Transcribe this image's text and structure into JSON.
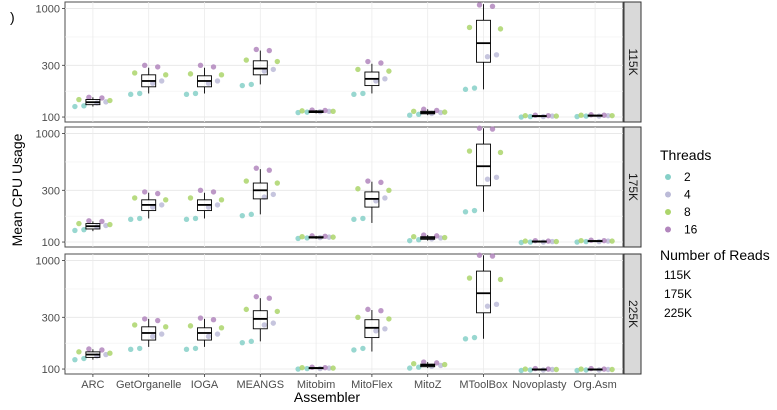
{
  "corner_mark": ")",
  "chart_data": {
    "type": "box-with-jitter",
    "xlabel": "Assembler",
    "ylabel": "Mean CPU Usage",
    "y_scale": "log10",
    "ylim": [
      90,
      1150
    ],
    "y_ticks": [
      100,
      300,
      1000
    ],
    "y_tick_labels": [
      "100",
      "300",
      "1000"
    ],
    "grid": true,
    "legend_position": "right",
    "categories": [
      "ARC",
      "GetOrganelle",
      "IOGA",
      "MEANGS",
      "Mitobim",
      "MitoFlex",
      "MitoZ",
      "MToolBox",
      "Novoplasty",
      "Org.Asm"
    ],
    "facets": [
      "115K",
      "175K",
      "225K"
    ],
    "threads_legend": {
      "title": "Threads",
      "items": [
        {
          "label": "2",
          "color": "#86d0c8"
        },
        {
          "label": "4",
          "color": "#bcbbd8"
        },
        {
          "label": "8",
          "color": "#acd56b"
        },
        {
          "label": "16",
          "color": "#b286bd"
        }
      ]
    },
    "reads_legend": {
      "title": "Number of Reads",
      "items": [
        "115K",
        "175K",
        "225K"
      ]
    },
    "panels": [
      {
        "facet": "115K",
        "boxes": [
          {
            "q1": 130,
            "median": 137,
            "q3": 145,
            "lo": 125,
            "hi": 152
          },
          {
            "q1": 190,
            "median": 215,
            "q3": 245,
            "lo": 165,
            "hi": 285
          },
          {
            "q1": 190,
            "median": 215,
            "q3": 240,
            "lo": 165,
            "hi": 285
          },
          {
            "q1": 245,
            "median": 280,
            "q3": 330,
            "lo": 200,
            "hi": 410
          },
          {
            "q1": 110,
            "median": 112,
            "q3": 114,
            "lo": 108,
            "hi": 116
          },
          {
            "q1": 195,
            "median": 225,
            "q3": 260,
            "lo": 165,
            "hi": 310
          },
          {
            "q1": 107,
            "median": 110,
            "q3": 113,
            "lo": 104,
            "hi": 118
          },
          {
            "q1": 320,
            "median": 480,
            "q3": 780,
            "lo": 180,
            "hi": 1100
          },
          {
            "q1": 101,
            "median": 102,
            "q3": 103,
            "lo": 100,
            "hi": 104
          },
          {
            "q1": 102,
            "median": 103,
            "q3": 104,
            "lo": 101,
            "hi": 105
          }
        ],
        "points": {
          "ARC": {
            "2": [
              125,
              127
            ],
            "4": [
              135,
              138
            ],
            "8": [
              142,
              145
            ],
            "16": [
              150,
              152
            ]
          },
          "GetOrganelle": {
            "2": [
              162,
              165
            ],
            "4": [
              205,
              215
            ],
            "8": [
              245,
              255
            ],
            "16": [
              290,
              300
            ]
          },
          "IOGA": {
            "2": [
              162,
              165
            ],
            "4": [
              205,
              215
            ],
            "8": [
              245,
              250
            ],
            "16": [
              290,
              300
            ]
          },
          "MEANGS": {
            "2": [
              195,
              200
            ],
            "4": [
              265,
              275
            ],
            "8": [
              325,
              335
            ],
            "16": [
              410,
              420
            ]
          },
          "Mitobim": {
            "2": [
              110,
              111
            ],
            "4": [
              112,
              113
            ],
            "8": [
              113,
              114
            ],
            "16": [
              115,
              116
            ]
          },
          "MitoFlex": {
            "2": [
              162,
              165
            ],
            "4": [
              215,
              225
            ],
            "8": [
              265,
              275
            ],
            "16": [
              315,
              325
            ]
          },
          "MitoZ": {
            "2": [
              104,
              106
            ],
            "4": [
              108,
              110
            ],
            "8": [
              111,
              113
            ],
            "16": [
              115,
              118
            ]
          },
          "MToolBox": {
            "2": [
              180,
              185
            ],
            "4": [
              360,
              375
            ],
            "8": [
              650,
              670
            ],
            "16": [
              1050,
              1080
            ]
          },
          "Novoplasty": {
            "2": [
              100,
              101
            ],
            "4": [
              101,
              102
            ],
            "8": [
              102,
              103
            ],
            "16": [
              103,
              104
            ]
          },
          "Org.Asm": {
            "2": [
              101,
              102
            ],
            "4": [
              102,
              103
            ],
            "8": [
              103,
              104
            ],
            "16": [
              104,
              105
            ]
          }
        }
      },
      {
        "facet": "175K",
        "boxes": [
          {
            "q1": 132,
            "median": 140,
            "q3": 148,
            "lo": 126,
            "hi": 155
          },
          {
            "q1": 195,
            "median": 220,
            "q3": 245,
            "lo": 165,
            "hi": 285
          },
          {
            "q1": 195,
            "median": 220,
            "q3": 245,
            "lo": 165,
            "hi": 285
          },
          {
            "q1": 250,
            "median": 300,
            "q3": 350,
            "lo": 180,
            "hi": 470
          },
          {
            "q1": 109,
            "median": 110,
            "q3": 112,
            "lo": 107,
            "hi": 114
          },
          {
            "q1": 210,
            "median": 250,
            "q3": 290,
            "lo": 150,
            "hi": 360
          },
          {
            "q1": 106,
            "median": 109,
            "q3": 112,
            "lo": 103,
            "hi": 116
          },
          {
            "q1": 330,
            "median": 500,
            "q3": 800,
            "lo": 190,
            "hi": 1120
          },
          {
            "q1": 100,
            "median": 101,
            "q3": 102,
            "lo": 99,
            "hi": 103
          },
          {
            "q1": 101,
            "median": 102,
            "q3": 103,
            "lo": 100,
            "hi": 104
          }
        ],
        "points": {
          "ARC": {
            "2": [
              128,
              130
            ],
            "4": [
              138,
              142
            ],
            "8": [
              145,
              148
            ],
            "16": [
              155,
              157
            ]
          },
          "GetOrganelle": {
            "2": [
              162,
              165
            ],
            "4": [
              210,
              220
            ],
            "8": [
              245,
              255
            ],
            "16": [
              280,
              290
            ]
          },
          "IOGA": {
            "2": [
              162,
              165
            ],
            "4": [
              210,
              220
            ],
            "8": [
              245,
              255
            ],
            "16": [
              290,
              300
            ]
          },
          "MEANGS": {
            "2": [
              175,
              180
            ],
            "4": [
              260,
              275
            ],
            "8": [
              350,
              365
            ],
            "16": [
              460,
              480
            ]
          },
          "Mitobim": {
            "2": [
              108,
              109
            ],
            "4": [
              110,
              111
            ],
            "8": [
              111,
              112
            ],
            "16": [
              113,
              114
            ]
          },
          "MitoFlex": {
            "2": [
              162,
              165
            ],
            "4": [
              240,
              255
            ],
            "8": [
              300,
              310
            ],
            "16": [
              355,
              365
            ]
          },
          "MitoZ": {
            "2": [
              103,
              105
            ],
            "4": [
              107,
              109
            ],
            "8": [
              110,
              112
            ],
            "16": [
              114,
              116
            ]
          },
          "MToolBox": {
            "2": [
              190,
              195
            ],
            "4": [
              380,
              395
            ],
            "8": [
              670,
              690
            ],
            "16": [
              1100,
              1120
            ]
          },
          "Novoplasty": {
            "2": [
              99,
              100
            ],
            "4": [
              100,
              101
            ],
            "8": [
              101,
              102
            ],
            "16": [
              102,
              103
            ]
          },
          "Org.Asm": {
            "2": [
              100,
              101
            ],
            "4": [
              101,
              102
            ],
            "8": [
              102,
              103
            ],
            "16": [
              103,
              104
            ]
          }
        }
      },
      {
        "facet": "225K",
        "boxes": [
          {
            "q1": 128,
            "median": 136,
            "q3": 144,
            "lo": 122,
            "hi": 152
          },
          {
            "q1": 185,
            "median": 215,
            "q3": 245,
            "lo": 160,
            "hi": 290
          },
          {
            "q1": 185,
            "median": 215,
            "q3": 240,
            "lo": 160,
            "hi": 290
          },
          {
            "q1": 235,
            "median": 290,
            "q3": 345,
            "lo": 180,
            "hi": 450
          },
          {
            "q1": 101,
            "median": 102,
            "q3": 103,
            "lo": 100,
            "hi": 104
          },
          {
            "q1": 195,
            "median": 240,
            "q3": 285,
            "lo": 145,
            "hi": 350
          },
          {
            "q1": 105,
            "median": 108,
            "q3": 111,
            "lo": 102,
            "hi": 116
          },
          {
            "q1": 330,
            "median": 500,
            "q3": 800,
            "lo": 190,
            "hi": 1120
          },
          {
            "q1": 98,
            "median": 99,
            "q3": 100,
            "lo": 97,
            "hi": 101
          },
          {
            "q1": 98,
            "median": 99,
            "q3": 100,
            "lo": 97,
            "hi": 101
          }
        ],
        "points": {
          "ARC": {
            "2": [
              122,
              125
            ],
            "4": [
              132,
              136
            ],
            "8": [
              140,
              144
            ],
            "16": [
              150,
              153
            ]
          },
          "GetOrganelle": {
            "2": [
              152,
              155
            ],
            "4": [
              200,
              210
            ],
            "8": [
              245,
              255
            ],
            "16": [
              280,
              290
            ]
          },
          "IOGA": {
            "2": [
              152,
              155
            ],
            "4": [
              200,
              210
            ],
            "8": [
              240,
              250
            ],
            "16": [
              285,
              295
            ]
          },
          "MEANGS": {
            "2": [
              175,
              180
            ],
            "4": [
              255,
              265
            ],
            "8": [
              340,
              355
            ],
            "16": [
              450,
              465
            ]
          },
          "Mitobim": {
            "2": [
              100,
              101
            ],
            "4": [
              101,
              102
            ],
            "8": [
              102,
              103
            ],
            "16": [
              103,
              104
            ]
          },
          "MitoFlex": {
            "2": [
              150,
              155
            ],
            "4": [
              225,
              235
            ],
            "8": [
              290,
              300
            ],
            "16": [
              345,
              355
            ]
          },
          "MitoZ": {
            "2": [
              102,
              104
            ],
            "4": [
              106,
              108
            ],
            "8": [
              110,
              112
            ],
            "16": [
              114,
              116
            ]
          },
          "MToolBox": {
            "2": [
              190,
              195
            ],
            "4": [
              380,
              395
            ],
            "8": [
              670,
              690
            ],
            "16": [
              1100,
              1120
            ]
          },
          "Novoplasty": {
            "2": [
              97,
              98
            ],
            "4": [
              98,
              99
            ],
            "8": [
              99,
              100
            ],
            "16": [
              100,
              101
            ]
          },
          "Org.Asm": {
            "2": [
              97,
              98
            ],
            "4": [
              98,
              99
            ],
            "8": [
              99,
              100
            ],
            "16": [
              100,
              101
            ]
          }
        }
      }
    ]
  }
}
